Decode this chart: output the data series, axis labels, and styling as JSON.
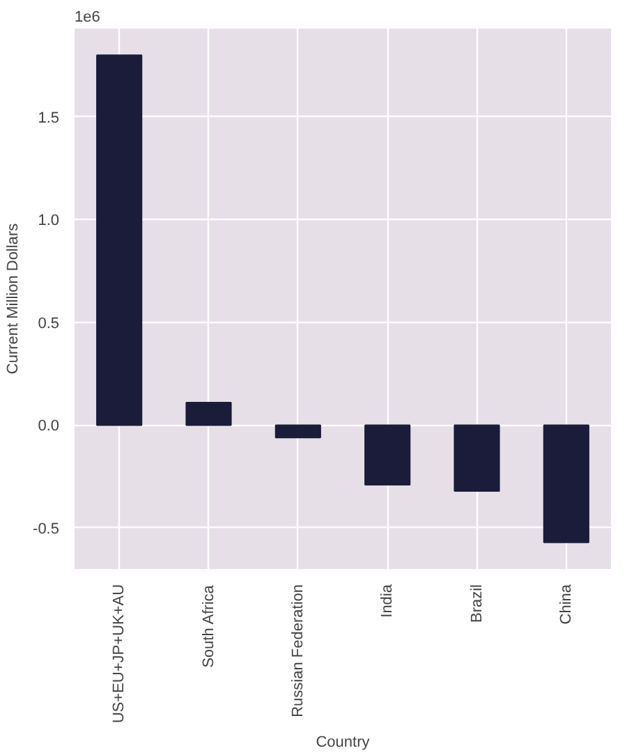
{
  "chart_data": {
    "type": "bar",
    "xlabel": "Country",
    "ylabel": "Current Million Dollars",
    "categories": [
      "US+EU+JP+UK+AU",
      "South Africa",
      "Russian Federation",
      "India",
      "Brazil",
      "China"
    ],
    "values": [
      1.8,
      0.11,
      -0.06,
      -0.29,
      -0.32,
      -0.57
    ],
    "color": "#1a1c3a",
    "ylim": [
      -0.7,
      1.93
    ],
    "yticks": [
      {
        "value": -0.5,
        "label": "-0.5"
      },
      {
        "value": 0,
        "label": "0.0"
      },
      {
        "value": 0.5,
        "label": "0.5"
      },
      {
        "value": 1,
        "label": "1.0"
      },
      {
        "value": 1.5,
        "label": "1.5"
      }
    ],
    "annotations": [
      "1e6"
    ],
    "grid": true
  }
}
